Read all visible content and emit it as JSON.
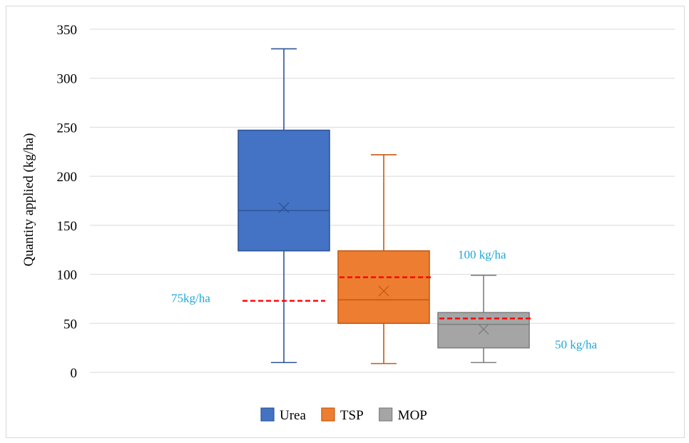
{
  "chart_data": {
    "type": "box",
    "title": "",
    "xlabel": "",
    "ylabel": "Quantity applied (kg/ha)",
    "ylim": [
      0,
      350
    ],
    "yticks": [
      0,
      50,
      100,
      150,
      200,
      250,
      300,
      350
    ],
    "grid": true,
    "legend_position": "bottom",
    "series": [
      {
        "name": "Urea",
        "color": "#4472c4",
        "edge": "#2f5597",
        "min": 10,
        "q1": 124,
        "median": 165,
        "q3": 247,
        "max": 330,
        "mean": 168
      },
      {
        "name": "TSP",
        "color": "#ed7d31",
        "edge": "#c55a11",
        "min": 9,
        "q1": 50,
        "median": 74,
        "q3": 124,
        "max": 222,
        "mean": 83
      },
      {
        "name": "MOP",
        "color": "#a5a5a5",
        "edge": "#7f7f7f",
        "min": 10,
        "q1": 25,
        "median": 49,
        "q3": 61,
        "max": 99,
        "mean": 44
      }
    ],
    "reference_lines": [
      {
        "label": "75kg/ha",
        "value": 73,
        "series": "Urea"
      },
      {
        "label": "100 kg/ha",
        "value": 97,
        "series": "TSP"
      },
      {
        "label": "50 kg/ha",
        "value": 55,
        "series": "MOP"
      }
    ],
    "reference_color": "#ff0000"
  }
}
